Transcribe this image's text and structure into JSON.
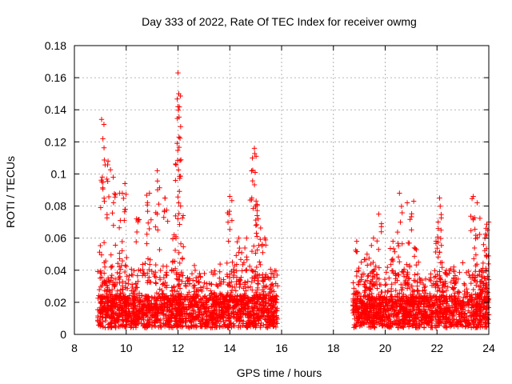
{
  "chart_data": {
    "type": "scatter",
    "title": "Day 333 of 2022, Rate Of TEC Index for receiver owmg",
    "xlabel": "GPS time / hours",
    "ylabel": "ROTI / TECUs",
    "xlim": [
      8,
      24
    ],
    "ylim": [
      0,
      0.18
    ],
    "xticks": [
      "8",
      "10",
      "12",
      "14",
      "16",
      "18",
      "20",
      "22",
      "24"
    ],
    "yticks": [
      "0",
      "0.02",
      "0.04",
      "0.06",
      "0.08",
      "0.1",
      "0.12",
      "0.14",
      "0.16",
      "0.18"
    ],
    "grid": true,
    "marker": "+",
    "color": "#ff0000",
    "segments": [
      {
        "start": 8.9,
        "end": 15.85
      },
      {
        "start": 18.75,
        "end": 24.0
      }
    ],
    "peaks": [
      {
        "x": 9.05,
        "y": 0.134
      },
      {
        "x": 9.1,
        "y": 0.122
      },
      {
        "x": 9.3,
        "y": 0.108
      },
      {
        "x": 9.5,
        "y": 0.098
      },
      {
        "x": 9.75,
        "y": 0.088
      },
      {
        "x": 9.95,
        "y": 0.094
      },
      {
        "x": 10.4,
        "y": 0.072
      },
      {
        "x": 10.9,
        "y": 0.088
      },
      {
        "x": 11.2,
        "y": 0.102
      },
      {
        "x": 11.5,
        "y": 0.085
      },
      {
        "x": 11.85,
        "y": 0.062
      },
      {
        "x": 12.0,
        "y": 0.163
      },
      {
        "x": 12.03,
        "y": 0.15
      },
      {
        "x": 12.0,
        "y": 0.142
      },
      {
        "x": 12.1,
        "y": 0.08
      },
      {
        "x": 12.6,
        "y": 0.03
      },
      {
        "x": 13.4,
        "y": 0.026
      },
      {
        "x": 13.6,
        "y": 0.035
      },
      {
        "x": 14.0,
        "y": 0.086
      },
      {
        "x": 14.1,
        "y": 0.045
      },
      {
        "x": 14.35,
        "y": 0.06
      },
      {
        "x": 14.65,
        "y": 0.06
      },
      {
        "x": 14.85,
        "y": 0.085
      },
      {
        "x": 14.95,
        "y": 0.116
      },
      {
        "x": 14.98,
        "y": 0.101
      },
      {
        "x": 15.1,
        "y": 0.072
      },
      {
        "x": 15.35,
        "y": 0.06
      },
      {
        "x": 15.6,
        "y": 0.038
      },
      {
        "x": 18.9,
        "y": 0.058
      },
      {
        "x": 19.3,
        "y": 0.05
      },
      {
        "x": 19.55,
        "y": 0.06
      },
      {
        "x": 19.75,
        "y": 0.075
      },
      {
        "x": 20.3,
        "y": 0.058
      },
      {
        "x": 20.55,
        "y": 0.088
      },
      {
        "x": 20.85,
        "y": 0.082
      },
      {
        "x": 21.1,
        "y": 0.083
      },
      {
        "x": 21.55,
        "y": 0.03
      },
      {
        "x": 22.05,
        "y": 0.066
      },
      {
        "x": 22.1,
        "y": 0.085
      },
      {
        "x": 22.3,
        "y": 0.03
      },
      {
        "x": 22.65,
        "y": 0.042
      },
      {
        "x": 23.4,
        "y": 0.086
      },
      {
        "x": 23.55,
        "y": 0.082
      },
      {
        "x": 23.7,
        "y": 0.04
      },
      {
        "x": 23.85,
        "y": 0.06
      },
      {
        "x": 23.95,
        "y": 0.065
      },
      {
        "x": 24.0,
        "y": 0.07
      }
    ]
  }
}
